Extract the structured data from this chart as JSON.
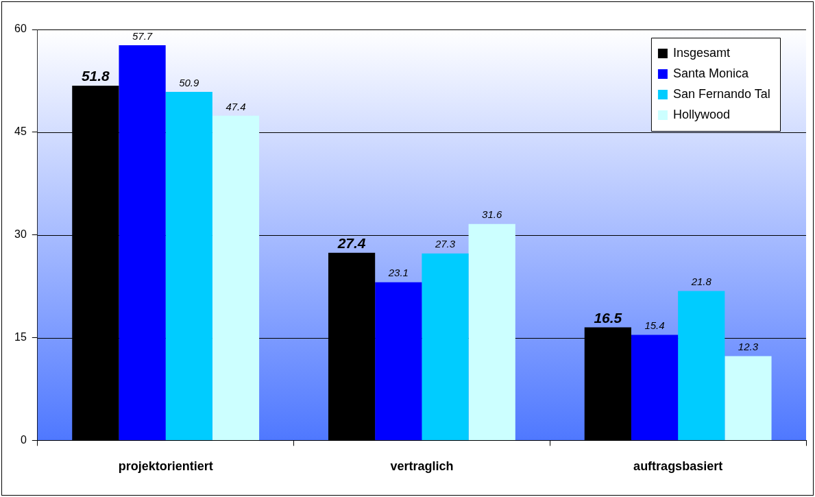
{
  "chart_data": {
    "type": "bar",
    "categories": [
      "projektorientiert",
      "vertraglich",
      "auftragsbasiert"
    ],
    "series": [
      {
        "name": "Insgesamt",
        "color": "#000000",
        "values": [
          51.8,
          27.4,
          16.5
        ]
      },
      {
        "name": "Santa Monica",
        "color": "#0000ff",
        "values": [
          57.7,
          23.1,
          15.4
        ]
      },
      {
        "name": "San Fernando Tal",
        "color": "#00ccff",
        "values": [
          50.9,
          27.3,
          21.8
        ]
      },
      {
        "name": "Hollywood",
        "color": "#ccffff",
        "values": [
          47.4,
          31.6,
          12.3
        ]
      }
    ],
    "ylim": [
      0,
      60
    ],
    "yticks": [
      0,
      15,
      30,
      45,
      60
    ],
    "grid": "y",
    "legend": "top right",
    "data_labels": true
  }
}
